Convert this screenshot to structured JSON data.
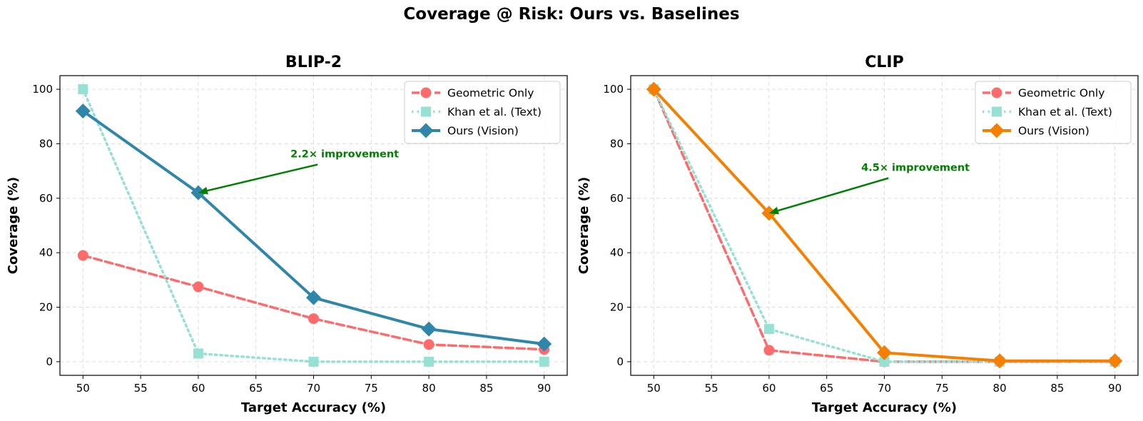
{
  "figure": {
    "suptitle": "Coverage @ Risk: Ours vs. Baselines"
  },
  "chart_data": [
    {
      "type": "line",
      "title": "BLIP-2",
      "xlabel": "Target Accuracy (%)",
      "ylabel": "Coverage (%)",
      "xlim": [
        48,
        92
      ],
      "ylim": [
        -5,
        105
      ],
      "xticks": [
        50,
        55,
        60,
        65,
        70,
        75,
        80,
        85,
        90
      ],
      "yticks": [
        0,
        20,
        40,
        60,
        80,
        100
      ],
      "grid": true,
      "legend_position": "top-right",
      "x": [
        50,
        60,
        70,
        80,
        90
      ],
      "series": [
        {
          "name": "Geometric Only",
          "values": [
            39,
            27.5,
            15.8,
            6.3,
            4.5
          ],
          "color": "#ff6b6b",
          "style": "dashed",
          "marker": "circle"
        },
        {
          "name": "Khan et al. (Text)",
          "values": [
            100,
            3,
            0,
            0,
            0
          ],
          "color": "#95e1d3",
          "style": "dotted",
          "marker": "square"
        },
        {
          "name": "Ours (Vision)",
          "values": [
            92,
            62,
            23.5,
            12,
            6.5
          ],
          "color": "#2e86ab",
          "style": "solid",
          "marker": "diamond"
        }
      ],
      "annotation": {
        "text": "2.2× improvement",
        "color": "#008000",
        "point": [
          60,
          62
        ],
        "text_at": [
          68,
          75
        ]
      }
    },
    {
      "type": "line",
      "title": "CLIP",
      "xlabel": "Target Accuracy (%)",
      "ylabel": "Coverage (%)",
      "xlim": [
        48,
        92
      ],
      "ylim": [
        -5,
        105
      ],
      "xticks": [
        50,
        55,
        60,
        65,
        70,
        75,
        80,
        85,
        90
      ],
      "yticks": [
        0,
        20,
        40,
        60,
        80,
        100
      ],
      "grid": true,
      "legend_position": "top-right",
      "x": [
        50,
        60,
        70,
        80,
        90
      ],
      "series": [
        {
          "name": "Geometric Only",
          "values": [
            100,
            4.2,
            0,
            0,
            0
          ],
          "color": "#ff6b6b",
          "style": "dashed",
          "marker": "circle"
        },
        {
          "name": "Khan et al. (Text)",
          "values": [
            100,
            12,
            0,
            0,
            0
          ],
          "color": "#95e1d3",
          "style": "dotted",
          "marker": "square"
        },
        {
          "name": "Ours (Vision)",
          "values": [
            100,
            54.5,
            3.3,
            0.3,
            0.3
          ],
          "color": "#f77f00",
          "style": "solid",
          "marker": "diamond"
        }
      ],
      "annotation": {
        "text": "4.5× improvement",
        "color": "#008000",
        "point": [
          60,
          54.5
        ],
        "text_at": [
          68,
          70
        ]
      }
    }
  ]
}
